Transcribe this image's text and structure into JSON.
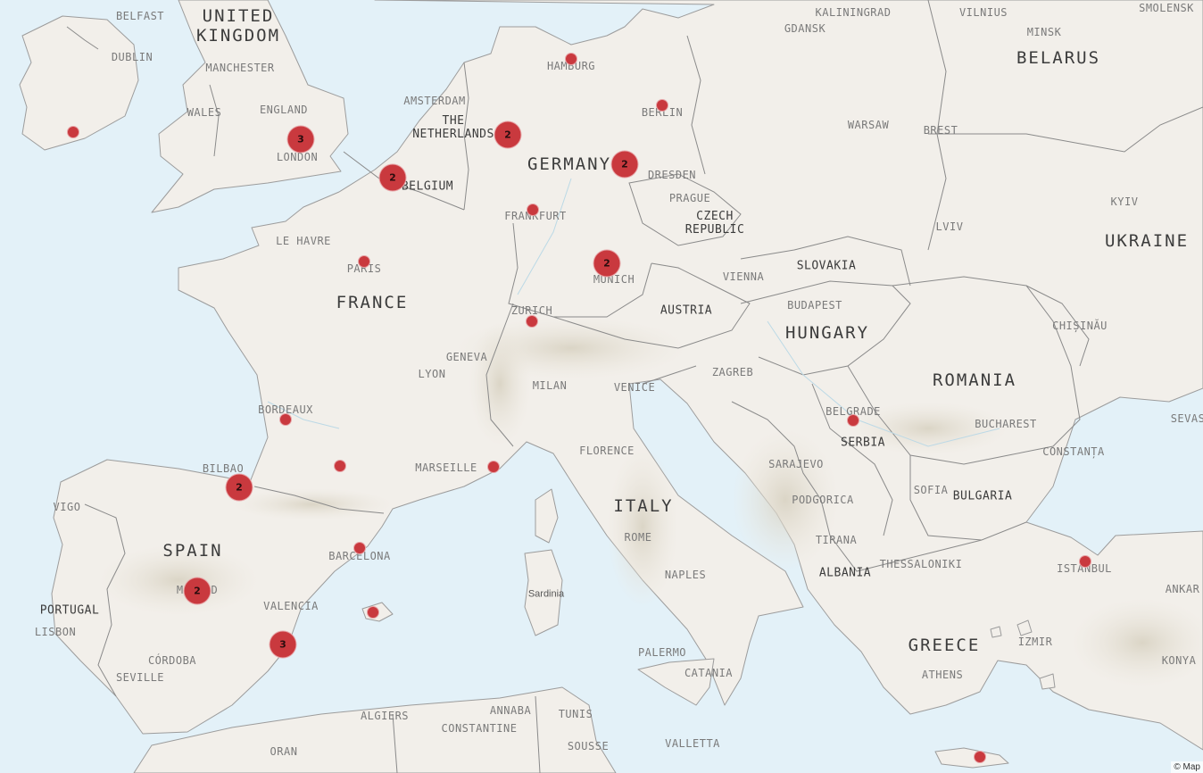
{
  "map": {
    "land_color": "#f2efea",
    "water_color": "#e3f1f8",
    "marker_color": "#c9393e",
    "attribution": "© Map",
    "labels": {
      "united_kingdom": "UNITED\nKINGDOM",
      "belfast": "BELFAST",
      "dublin": "DUBLIN",
      "manchester": "MANCHESTER",
      "wales": "WALES",
      "england": "ENGLAND",
      "london": "LONDON",
      "kaliningrad": "KALININGRAD",
      "vilnius": "VILNIUS",
      "smolensk": "SMOLENSK",
      "gdansk": "GDANSK",
      "minsk": "MINSK",
      "belarus": "BELARUS",
      "hamburg": "HAMBURG",
      "amsterdam": "AMSTERDAM",
      "the_netherlands": "THE\nNETHERLANDS",
      "berlin": "BERLIN",
      "warsaw": "WARSAW",
      "brest": "BREST",
      "germany": "GERMANY",
      "dresden": "DRESDEN",
      "belgium": "BELGIUM",
      "prague": "PRAGUE",
      "czech_republic": "CZECH\nREPUBLIC",
      "frankfurt": "FRANKFURT",
      "kyiv": "KYIV",
      "lviv": "LVIV",
      "ukraine": "UKRAINE",
      "le_havre": "LE HAVRE",
      "paris": "PARIS",
      "slovakia": "SLOVAKIA",
      "munich": "MUNICH",
      "vienna": "VIENNA",
      "france": "FRANCE",
      "budapest": "BUDAPEST",
      "zurich": "ZURICH",
      "austria": "AUSTRIA",
      "chisinau": "CHIȘINĂU",
      "hungary": "HUNGARY",
      "geneva": "GENEVA",
      "lyon": "LYON",
      "zagreb": "ZAGREB",
      "romania": "ROMANIA",
      "milan": "MILAN",
      "venice": "VENICE",
      "bordeaux": "BORDEAUX",
      "belgrade": "BELGRADE",
      "bucharest": "BUCHAREST",
      "sevas": "SEVAS",
      "serbia": "SERBIA",
      "florence": "FLORENCE",
      "constanta": "CONSTANȚA",
      "bilbao": "BILBAO",
      "marseille": "MARSEILLE",
      "sarajevo": "SARAJEVO",
      "sofia": "SOFIA",
      "bulgaria": "BULGARIA",
      "vigo": "VIGO",
      "podgorica": "PODGORICA",
      "italy": "ITALY",
      "spain": "SPAIN",
      "rome": "ROME",
      "tirana": "TIRANA",
      "barcelona": "BARCELONA",
      "istanbul": "ISTANBUL",
      "thessaloniki": "THESSALONIKI",
      "ankara": "ANKAR",
      "albania": "ALBANIA",
      "naples": "NAPLES",
      "madrid": "MADRID",
      "sardinia": "Sardinia",
      "portugal": "PORTUGAL",
      "valencia": "VALENCIA",
      "lisbon": "LISBON",
      "greece": "GREECE",
      "izmir": "IZMIR",
      "palermo": "PALERMO",
      "cordoba": "CÓRDOBA",
      "konya": "KONYA",
      "athens": "ATHENS",
      "catania": "CATANIA",
      "seville": "SEVILLE",
      "algiers": "ALGIERS",
      "annaba": "ANNABA",
      "tunis": "TUNIS",
      "constantine": "CONSTANTINE",
      "sousse": "SOUSSE",
      "valletta": "VALLETTA",
      "oran": "ORAN"
    },
    "clusters": {
      "london": "3",
      "netherlands": "2",
      "belgium": "2",
      "germany_east": "2",
      "munich": "2",
      "bilbao": "2",
      "madrid": "2",
      "alicante": "3"
    }
  }
}
